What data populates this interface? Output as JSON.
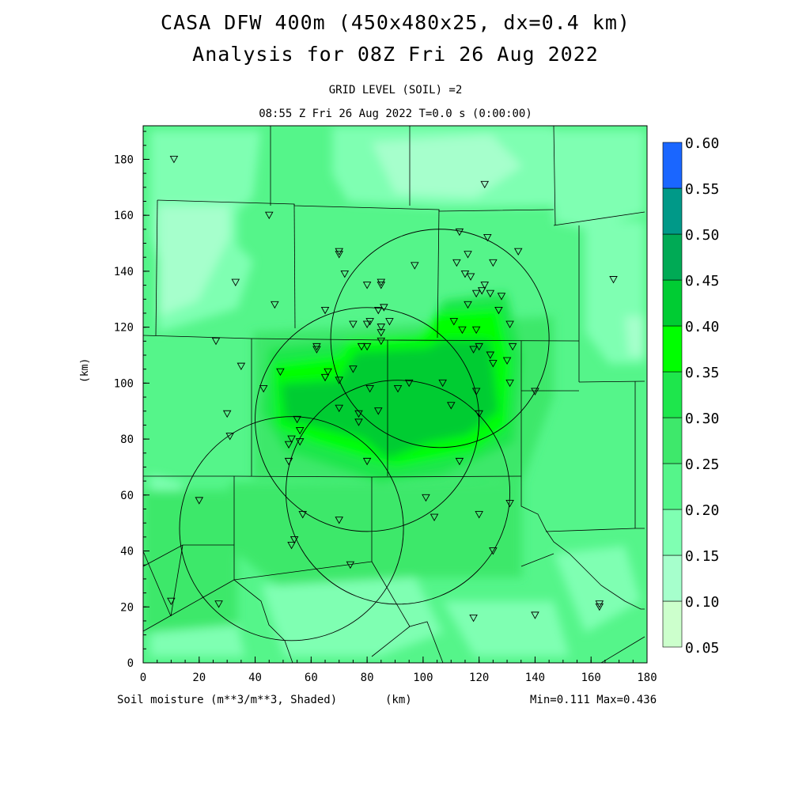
{
  "chart_data": {
    "type": "heatmap",
    "title": "CASA DFW 400m (450x480x25, dx=0.4 km)",
    "subtitle": "Analysis for 08Z Fri 26 Aug 2022",
    "level_label": "GRID LEVEL (SOIL) =2",
    "time_label": "08:55 Z Fri 26 Aug 2022   T=0.0 s (0:00:00)",
    "xlabel": "(km)",
    "ylabel": "(km)",
    "field_label": "Soil moisture (m**3/m**3, Shaded)",
    "minmax_label": "Min=0.111 Max=0.436",
    "xlim": [
      0,
      180
    ],
    "ylim": [
      0,
      192
    ],
    "x_ticks": [
      0,
      20,
      40,
      60,
      80,
      100,
      120,
      140,
      160,
      180
    ],
    "y_ticks": [
      0,
      20,
      40,
      60,
      80,
      100,
      120,
      140,
      160,
      180
    ],
    "colorbar": {
      "levels": [
        "0.05",
        "0.10",
        "0.15",
        "0.20",
        "0.25",
        "0.30",
        "0.35",
        "0.40",
        "0.45",
        "0.50",
        "0.55",
        "0.60"
      ],
      "colors": [
        "#ccffcc",
        "#a6ffcc",
        "#7fffb2",
        "#55f58a",
        "#3ee86b",
        "#1ee64c",
        "#00ff00",
        "#00cc33",
        "#00aa55",
        "#009988",
        "#1a66ff"
      ]
    },
    "radar_rings": [
      {
        "center": [
          106,
          116
        ],
        "radius": 39
      },
      {
        "center": [
          80,
          87
        ],
        "radius": 40
      },
      {
        "center": [
          91,
          61
        ],
        "radius": 40
      },
      {
        "center": [
          53,
          48
        ],
        "radius": 40
      }
    ],
    "stations": [
      [
        11,
        180
      ],
      [
        122,
        171
      ],
      [
        45,
        160
      ],
      [
        123,
        152
      ],
      [
        113,
        154
      ],
      [
        134,
        147
      ],
      [
        70,
        147
      ],
      [
        70,
        146
      ],
      [
        116,
        146
      ],
      [
        112,
        143
      ],
      [
        97,
        142
      ],
      [
        125,
        143
      ],
      [
        72,
        139
      ],
      [
        115,
        139
      ],
      [
        117,
        138
      ],
      [
        168,
        137
      ],
      [
        33,
        136
      ],
      [
        80,
        135
      ],
      [
        85,
        136
      ],
      [
        85,
        135
      ],
      [
        122,
        135
      ],
      [
        124,
        132
      ],
      [
        119,
        132
      ],
      [
        121,
        133
      ],
      [
        128,
        131
      ],
      [
        47,
        128
      ],
      [
        86,
        127
      ],
      [
        84,
        126
      ],
      [
        65,
        126
      ],
      [
        116,
        128
      ],
      [
        127,
        126
      ],
      [
        88,
        122
      ],
      [
        75,
        121
      ],
      [
        80,
        121
      ],
      [
        81,
        122
      ],
      [
        85,
        120
      ],
      [
        111,
        122
      ],
      [
        114,
        119
      ],
      [
        119,
        119
      ],
      [
        131,
        121
      ],
      [
        85,
        118
      ],
      [
        85,
        115
      ],
      [
        26,
        115
      ],
      [
        62,
        113
      ],
      [
        62,
        112
      ],
      [
        78,
        113
      ],
      [
        80,
        113
      ],
      [
        120,
        113
      ],
      [
        118,
        112
      ],
      [
        132,
        113
      ],
      [
        124,
        110
      ],
      [
        125,
        107
      ],
      [
        130,
        108
      ],
      [
        75,
        105
      ],
      [
        35,
        106
      ],
      [
        66,
        104
      ],
      [
        65,
        102
      ],
      [
        70,
        101
      ],
      [
        49,
        104
      ],
      [
        43,
        98
      ],
      [
        107,
        100
      ],
      [
        95,
        100
      ],
      [
        91,
        98
      ],
      [
        81,
        98
      ],
      [
        131,
        100
      ],
      [
        140,
        97
      ],
      [
        119,
        97
      ],
      [
        30,
        89
      ],
      [
        70,
        91
      ],
      [
        77,
        89
      ],
      [
        84,
        90
      ],
      [
        110,
        92
      ],
      [
        120,
        89
      ],
      [
        77,
        86
      ],
      [
        55,
        87
      ],
      [
        56,
        83
      ],
      [
        31,
        81
      ],
      [
        53,
        80
      ],
      [
        52,
        78
      ],
      [
        56,
        79
      ],
      [
        52,
        72
      ],
      [
        80,
        72
      ],
      [
        113,
        72
      ],
      [
        101,
        59
      ],
      [
        131,
        57
      ],
      [
        20,
        58
      ],
      [
        57,
        53
      ],
      [
        104,
        52
      ],
      [
        70,
        51
      ],
      [
        120,
        53
      ],
      [
        54,
        44
      ],
      [
        53,
        42
      ],
      [
        125,
        40
      ],
      [
        74,
        35
      ],
      [
        10,
        22
      ],
      [
        27,
        21
      ],
      [
        118,
        16
      ],
      [
        140,
        17
      ],
      [
        163,
        21
      ],
      [
        163,
        20
      ]
    ]
  }
}
